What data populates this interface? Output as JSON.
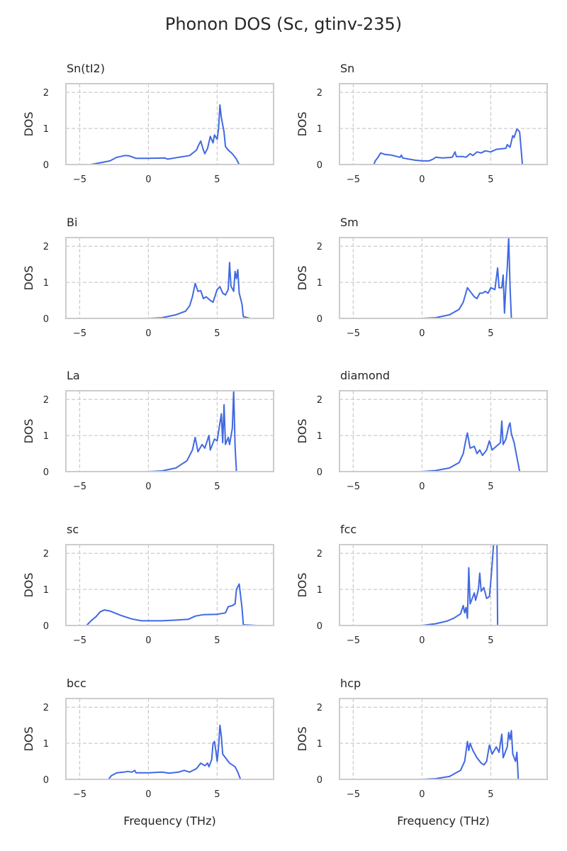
{
  "chart_data": {
    "type": "line",
    "title": "Phonon DOS (Sc, gtinv-235)",
    "xlabel": "Frequency (THz)",
    "ylabel": "DOS",
    "xlim": [
      -6.0,
      9.1
    ],
    "ylim": [
      0,
      2.24
    ],
    "xticks": [
      -5,
      0,
      5
    ],
    "xtick_labels": [
      "−5",
      "0",
      "5"
    ],
    "yticks": [
      0,
      1,
      2
    ],
    "ytick_labels": [
      "0",
      "1",
      "2"
    ],
    "grid": true,
    "line_color": "#4169e1",
    "panels": [
      {
        "title": "Sn(tI2)",
        "points": [
          [
            -4.2,
            0
          ],
          [
            -3.5,
            0.05
          ],
          [
            -2.8,
            0.1
          ],
          [
            -2.3,
            0.2
          ],
          [
            -1.7,
            0.25
          ],
          [
            -1.4,
            0.24
          ],
          [
            -0.9,
            0.17
          ],
          [
            0,
            0.17
          ],
          [
            1.2,
            0.18
          ],
          [
            1.4,
            0.15
          ],
          [
            2.2,
            0.2
          ],
          [
            3,
            0.25
          ],
          [
            3.5,
            0.4
          ],
          [
            3.6,
            0.5
          ],
          [
            3.8,
            0.65
          ],
          [
            4.0,
            0.4
          ],
          [
            4.1,
            0.3
          ],
          [
            4.3,
            0.45
          ],
          [
            4.5,
            0.78
          ],
          [
            4.7,
            0.6
          ],
          [
            4.8,
            0.82
          ],
          [
            5.0,
            0.7
          ],
          [
            5.1,
            1.0
          ],
          [
            5.2,
            1.65
          ],
          [
            5.3,
            1.3
          ],
          [
            5.5,
            0.9
          ],
          [
            5.6,
            0.5
          ],
          [
            5.8,
            0.4
          ],
          [
            6.1,
            0.3
          ],
          [
            6.4,
            0.15
          ],
          [
            6.6,
            0
          ],
          [
            7.6,
            0
          ]
        ]
      },
      {
        "title": "Sn",
        "points": [
          [
            -3.5,
            0
          ],
          [
            -3.4,
            0.1
          ],
          [
            -3.2,
            0.2
          ],
          [
            -3.0,
            0.32
          ],
          [
            -2.7,
            0.28
          ],
          [
            -2.2,
            0.26
          ],
          [
            -1.6,
            0.2
          ],
          [
            -1.5,
            0.26
          ],
          [
            -1.4,
            0.18
          ],
          [
            -0.5,
            0.12
          ],
          [
            0,
            0.1
          ],
          [
            0.5,
            0.1
          ],
          [
            0.8,
            0.15
          ],
          [
            1.0,
            0.2
          ],
          [
            1.5,
            0.18
          ],
          [
            2.2,
            0.2
          ],
          [
            2.4,
            0.35
          ],
          [
            2.5,
            0.22
          ],
          [
            3.0,
            0.22
          ],
          [
            3.2,
            0.2
          ],
          [
            3.5,
            0.3
          ],
          [
            3.7,
            0.25
          ],
          [
            4.0,
            0.35
          ],
          [
            4.3,
            0.32
          ],
          [
            4.6,
            0.38
          ],
          [
            5.0,
            0.35
          ],
          [
            5.4,
            0.42
          ],
          [
            6.1,
            0.45
          ],
          [
            6.2,
            0.55
          ],
          [
            6.4,
            0.48
          ],
          [
            6.6,
            0.8
          ],
          [
            6.7,
            0.75
          ],
          [
            6.9,
            0.98
          ],
          [
            7.0,
            0.95
          ],
          [
            7.1,
            0.9
          ],
          [
            7.3,
            0
          ],
          [
            7.8,
            0
          ]
        ]
      },
      {
        "title": "Bi",
        "points": [
          [
            0,
            0
          ],
          [
            1,
            0.02
          ],
          [
            2,
            0.1
          ],
          [
            2.7,
            0.2
          ],
          [
            3.0,
            0.35
          ],
          [
            3.2,
            0.6
          ],
          [
            3.4,
            0.97
          ],
          [
            3.6,
            0.75
          ],
          [
            3.8,
            0.77
          ],
          [
            4.0,
            0.55
          ],
          [
            4.2,
            0.6
          ],
          [
            4.5,
            0.5
          ],
          [
            4.7,
            0.45
          ],
          [
            5.0,
            0.8
          ],
          [
            5.2,
            0.88
          ],
          [
            5.4,
            0.7
          ],
          [
            5.6,
            0.65
          ],
          [
            5.8,
            0.8
          ],
          [
            5.9,
            1.55
          ],
          [
            6.0,
            0.9
          ],
          [
            6.2,
            0.75
          ],
          [
            6.3,
            1.3
          ],
          [
            6.4,
            1.1
          ],
          [
            6.5,
            1.35
          ],
          [
            6.6,
            0.7
          ],
          [
            6.8,
            0.4
          ],
          [
            6.9,
            0.05
          ],
          [
            7.4,
            0
          ]
        ]
      },
      {
        "title": "Sm",
        "points": [
          [
            0,
            0
          ],
          [
            1,
            0.02
          ],
          [
            2,
            0.1
          ],
          [
            2.7,
            0.25
          ],
          [
            3.0,
            0.45
          ],
          [
            3.3,
            0.85
          ],
          [
            3.5,
            0.75
          ],
          [
            3.8,
            0.6
          ],
          [
            4.0,
            0.55
          ],
          [
            4.2,
            0.7
          ],
          [
            4.4,
            0.7
          ],
          [
            4.6,
            0.75
          ],
          [
            4.8,
            0.7
          ],
          [
            5.0,
            0.85
          ],
          [
            5.3,
            0.8
          ],
          [
            5.5,
            1.4
          ],
          [
            5.6,
            0.85
          ],
          [
            5.8,
            0.85
          ],
          [
            5.9,
            1.2
          ],
          [
            6.0,
            0.15
          ],
          [
            6.1,
            0.9
          ],
          [
            6.2,
            1.4
          ],
          [
            6.3,
            2.24
          ],
          [
            6.4,
            0.9
          ],
          [
            6.5,
            0
          ],
          [
            7.2,
            0
          ]
        ]
      },
      {
        "title": "La",
        "points": [
          [
            0,
            0
          ],
          [
            1,
            0.02
          ],
          [
            2,
            0.1
          ],
          [
            2.8,
            0.3
          ],
          [
            3.2,
            0.6
          ],
          [
            3.4,
            0.95
          ],
          [
            3.6,
            0.55
          ],
          [
            3.9,
            0.75
          ],
          [
            4.1,
            0.65
          ],
          [
            4.4,
            1.0
          ],
          [
            4.5,
            0.6
          ],
          [
            4.8,
            0.9
          ],
          [
            5.0,
            0.85
          ],
          [
            5.3,
            1.6
          ],
          [
            5.4,
            0.8
          ],
          [
            5.5,
            1.85
          ],
          [
            5.6,
            0.75
          ],
          [
            5.8,
            0.95
          ],
          [
            5.9,
            0.75
          ],
          [
            6.1,
            1.2
          ],
          [
            6.2,
            2.24
          ],
          [
            6.3,
            0.7
          ],
          [
            6.4,
            0
          ],
          [
            7.0,
            0
          ]
        ]
      },
      {
        "title": "diamond",
        "points": [
          [
            0,
            0
          ],
          [
            1,
            0.03
          ],
          [
            2,
            0.1
          ],
          [
            2.7,
            0.25
          ],
          [
            3.0,
            0.5
          ],
          [
            3.2,
            0.9
          ],
          [
            3.3,
            1.07
          ],
          [
            3.5,
            0.65
          ],
          [
            3.8,
            0.7
          ],
          [
            4.0,
            0.5
          ],
          [
            4.2,
            0.6
          ],
          [
            4.4,
            0.45
          ],
          [
            4.7,
            0.6
          ],
          [
            4.9,
            0.85
          ],
          [
            5.1,
            0.6
          ],
          [
            5.4,
            0.7
          ],
          [
            5.7,
            0.8
          ],
          [
            5.8,
            1.4
          ],
          [
            5.9,
            0.75
          ],
          [
            6.1,
            0.9
          ],
          [
            6.3,
            1.25
          ],
          [
            6.4,
            1.35
          ],
          [
            6.5,
            1.05
          ],
          [
            6.7,
            0.8
          ],
          [
            6.9,
            0.4
          ],
          [
            7.1,
            0
          ],
          [
            7.7,
            0
          ]
        ]
      },
      {
        "title": "sc",
        "points": [
          [
            -5.4,
            0
          ],
          [
            -4.5,
            0
          ],
          [
            -4.2,
            0.12
          ],
          [
            -3.8,
            0.25
          ],
          [
            -3.5,
            0.38
          ],
          [
            -3.2,
            0.43
          ],
          [
            -2.8,
            0.4
          ],
          [
            -2,
            0.28
          ],
          [
            -1.2,
            0.18
          ],
          [
            -0.5,
            0.13
          ],
          [
            0,
            0.13
          ],
          [
            1,
            0.13
          ],
          [
            2,
            0.15
          ],
          [
            2.9,
            0.17
          ],
          [
            3.4,
            0.26
          ],
          [
            4,
            0.3
          ],
          [
            5,
            0.31
          ],
          [
            5.6,
            0.35
          ],
          [
            5.8,
            0.52
          ],
          [
            6.1,
            0.55
          ],
          [
            6.3,
            0.6
          ],
          [
            6.4,
            1.0
          ],
          [
            6.6,
            1.15
          ],
          [
            6.8,
            0.5
          ],
          [
            6.9,
            0.02
          ],
          [
            7.9,
            0
          ]
        ]
      },
      {
        "title": "fcc",
        "points": [
          [
            0,
            0
          ],
          [
            1,
            0.05
          ],
          [
            1.8,
            0.12
          ],
          [
            2.3,
            0.2
          ],
          [
            2.8,
            0.32
          ],
          [
            3.0,
            0.55
          ],
          [
            3.1,
            0.35
          ],
          [
            3.2,
            0.5
          ],
          [
            3.3,
            0.2
          ],
          [
            3.4,
            1.6
          ],
          [
            3.5,
            0.6
          ],
          [
            3.8,
            0.9
          ],
          [
            3.9,
            0.7
          ],
          [
            4.1,
            1.0
          ],
          [
            4.2,
            1.45
          ],
          [
            4.3,
            0.95
          ],
          [
            4.5,
            1.05
          ],
          [
            4.7,
            0.75
          ],
          [
            4.9,
            0.8
          ],
          [
            5.0,
            1.2
          ],
          [
            5.1,
            1.7
          ],
          [
            5.2,
            2.24
          ],
          [
            5.45,
            2.24
          ],
          [
            5.5,
            0
          ],
          [
            6.3,
            0
          ]
        ]
      },
      {
        "title": "bcc",
        "points": [
          [
            -3.9,
            0
          ],
          [
            -2.9,
            0
          ],
          [
            -2.7,
            0.1
          ],
          [
            -2.3,
            0.18
          ],
          [
            -1.8,
            0.2
          ],
          [
            -1.5,
            0.22
          ],
          [
            -1.2,
            0.2
          ],
          [
            -1.0,
            0.25
          ],
          [
            -0.9,
            0.18
          ],
          [
            0,
            0.18
          ],
          [
            1,
            0.2
          ],
          [
            1.5,
            0.17
          ],
          [
            2.2,
            0.2
          ],
          [
            2.6,
            0.25
          ],
          [
            3.0,
            0.2
          ],
          [
            3.5,
            0.3
          ],
          [
            3.8,
            0.45
          ],
          [
            4.1,
            0.38
          ],
          [
            4.3,
            0.45
          ],
          [
            4.4,
            0.35
          ],
          [
            4.6,
            0.55
          ],
          [
            4.7,
            1.0
          ],
          [
            4.8,
            1.05
          ],
          [
            4.9,
            0.8
          ],
          [
            5.0,
            0.5
          ],
          [
            5.1,
            0.9
          ],
          [
            5.2,
            1.5
          ],
          [
            5.3,
            1.2
          ],
          [
            5.4,
            0.7
          ],
          [
            5.6,
            0.6
          ],
          [
            5.9,
            0.45
          ],
          [
            6.3,
            0.35
          ],
          [
            6.5,
            0.2
          ],
          [
            6.7,
            0
          ],
          [
            7.5,
            0
          ]
        ]
      },
      {
        "title": "hcp",
        "points": [
          [
            0,
            0
          ],
          [
            1,
            0.02
          ],
          [
            2,
            0.08
          ],
          [
            2.8,
            0.25
          ],
          [
            3.1,
            0.5
          ],
          [
            3.3,
            1.05
          ],
          [
            3.4,
            0.8
          ],
          [
            3.5,
            1.0
          ],
          [
            3.7,
            0.8
          ],
          [
            4.0,
            0.6
          ],
          [
            4.3,
            0.45
          ],
          [
            4.5,
            0.4
          ],
          [
            4.7,
            0.5
          ],
          [
            4.9,
            0.95
          ],
          [
            5.1,
            0.7
          ],
          [
            5.4,
            0.9
          ],
          [
            5.6,
            0.75
          ],
          [
            5.8,
            1.25
          ],
          [
            5.9,
            0.6
          ],
          [
            6.2,
            0.9
          ],
          [
            6.3,
            1.3
          ],
          [
            6.4,
            1.1
          ],
          [
            6.5,
            1.35
          ],
          [
            6.6,
            0.7
          ],
          [
            6.8,
            0.5
          ],
          [
            6.9,
            0.75
          ],
          [
            7.0,
            0
          ],
          [
            7.5,
            0
          ]
        ]
      }
    ]
  }
}
